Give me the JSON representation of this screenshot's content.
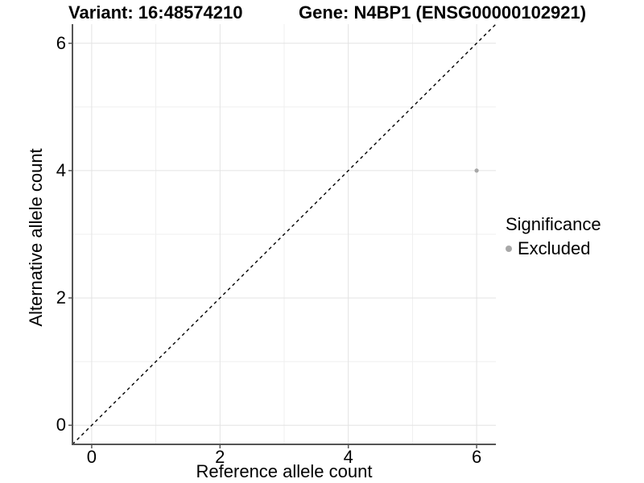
{
  "chart_data": {
    "type": "scatter",
    "title_left": "Variant: 16:48574210",
    "title_right": "Gene: N4BP1 (ENSG00000102921)",
    "xlabel": "Reference allele count",
    "ylabel": "Alternative allele count",
    "xlim": [
      -0.3,
      6.3
    ],
    "ylim": [
      -0.3,
      6.3
    ],
    "x_ticks": [
      0,
      2,
      4,
      6
    ],
    "y_ticks": [
      0,
      2,
      4,
      6
    ],
    "x_minor_gridlines": [
      1,
      3,
      5
    ],
    "y_minor_gridlines": [
      1,
      3,
      5
    ],
    "grid": true,
    "identity_line": {
      "slope": 1,
      "intercept": 0,
      "style": "dashed",
      "color": "#000000"
    },
    "series": [
      {
        "name": "Excluded",
        "color": "#a8a8a8",
        "points": [
          {
            "x": 6,
            "y": 4
          }
        ]
      }
    ],
    "legend": {
      "title": "Significance",
      "position": "right",
      "items": [
        {
          "label": "Excluded",
          "color": "#a8a8a8"
        }
      ]
    },
    "colors": {
      "background": "#ffffff",
      "axis_line": "#555555",
      "grid_major": "#e3e3e3",
      "grid_minor": "#efefef",
      "tick_text": "#000000"
    }
  }
}
